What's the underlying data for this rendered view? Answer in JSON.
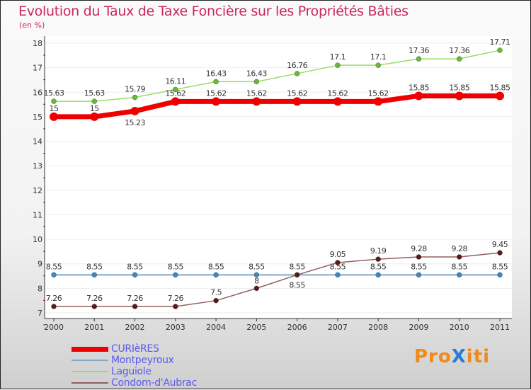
{
  "chart_data": {
    "type": "line",
    "title": "Evolution du Taux de Taxe Foncière sur les Propriétés Bâties",
    "subtitle": "(en %)",
    "xlabel": "",
    "ylabel": "",
    "ylim": [
      7,
      18
    ],
    "y_ticks": [
      "7",
      "8",
      "9",
      "10",
      "11",
      "12",
      "13",
      "14",
      "15",
      "16",
      "17",
      "18"
    ],
    "x": [
      "2000",
      "2001",
      "2002",
      "2003",
      "2004",
      "2005",
      "2006",
      "2007",
      "2008",
      "2009",
      "2010",
      "2011"
    ],
    "series": [
      {
        "name": "CURIèRES",
        "color": "#ee0000",
        "values": [
          15,
          15,
          15.23,
          15.62,
          15.62,
          15.62,
          15.62,
          15.62,
          15.62,
          15.85,
          15.85,
          15.85
        ]
      },
      {
        "name": "Montpeyroux",
        "color": "#80a8c8",
        "values": [
          8.55,
          8.55,
          8.55,
          8.55,
          8.55,
          8.55,
          8.55,
          8.55,
          8.55,
          8.55,
          8.55,
          8.55
        ]
      },
      {
        "name": "Laguiole",
        "color": "#99dd66",
        "values": [
          15.63,
          15.63,
          15.79,
          16.11,
          16.43,
          16.43,
          16.76,
          17.1,
          17.1,
          17.36,
          17.36,
          17.71
        ]
      },
      {
        "name": "Condom-d'Aubrac",
        "color": "#906060",
        "values": [
          7.26,
          7.26,
          7.26,
          7.26,
          7.5,
          8,
          8.55,
          9.05,
          9.19,
          9.28,
          9.28,
          9.45
        ]
      }
    ],
    "legend_position": "bottom-left"
  },
  "logo": "ProXiti"
}
